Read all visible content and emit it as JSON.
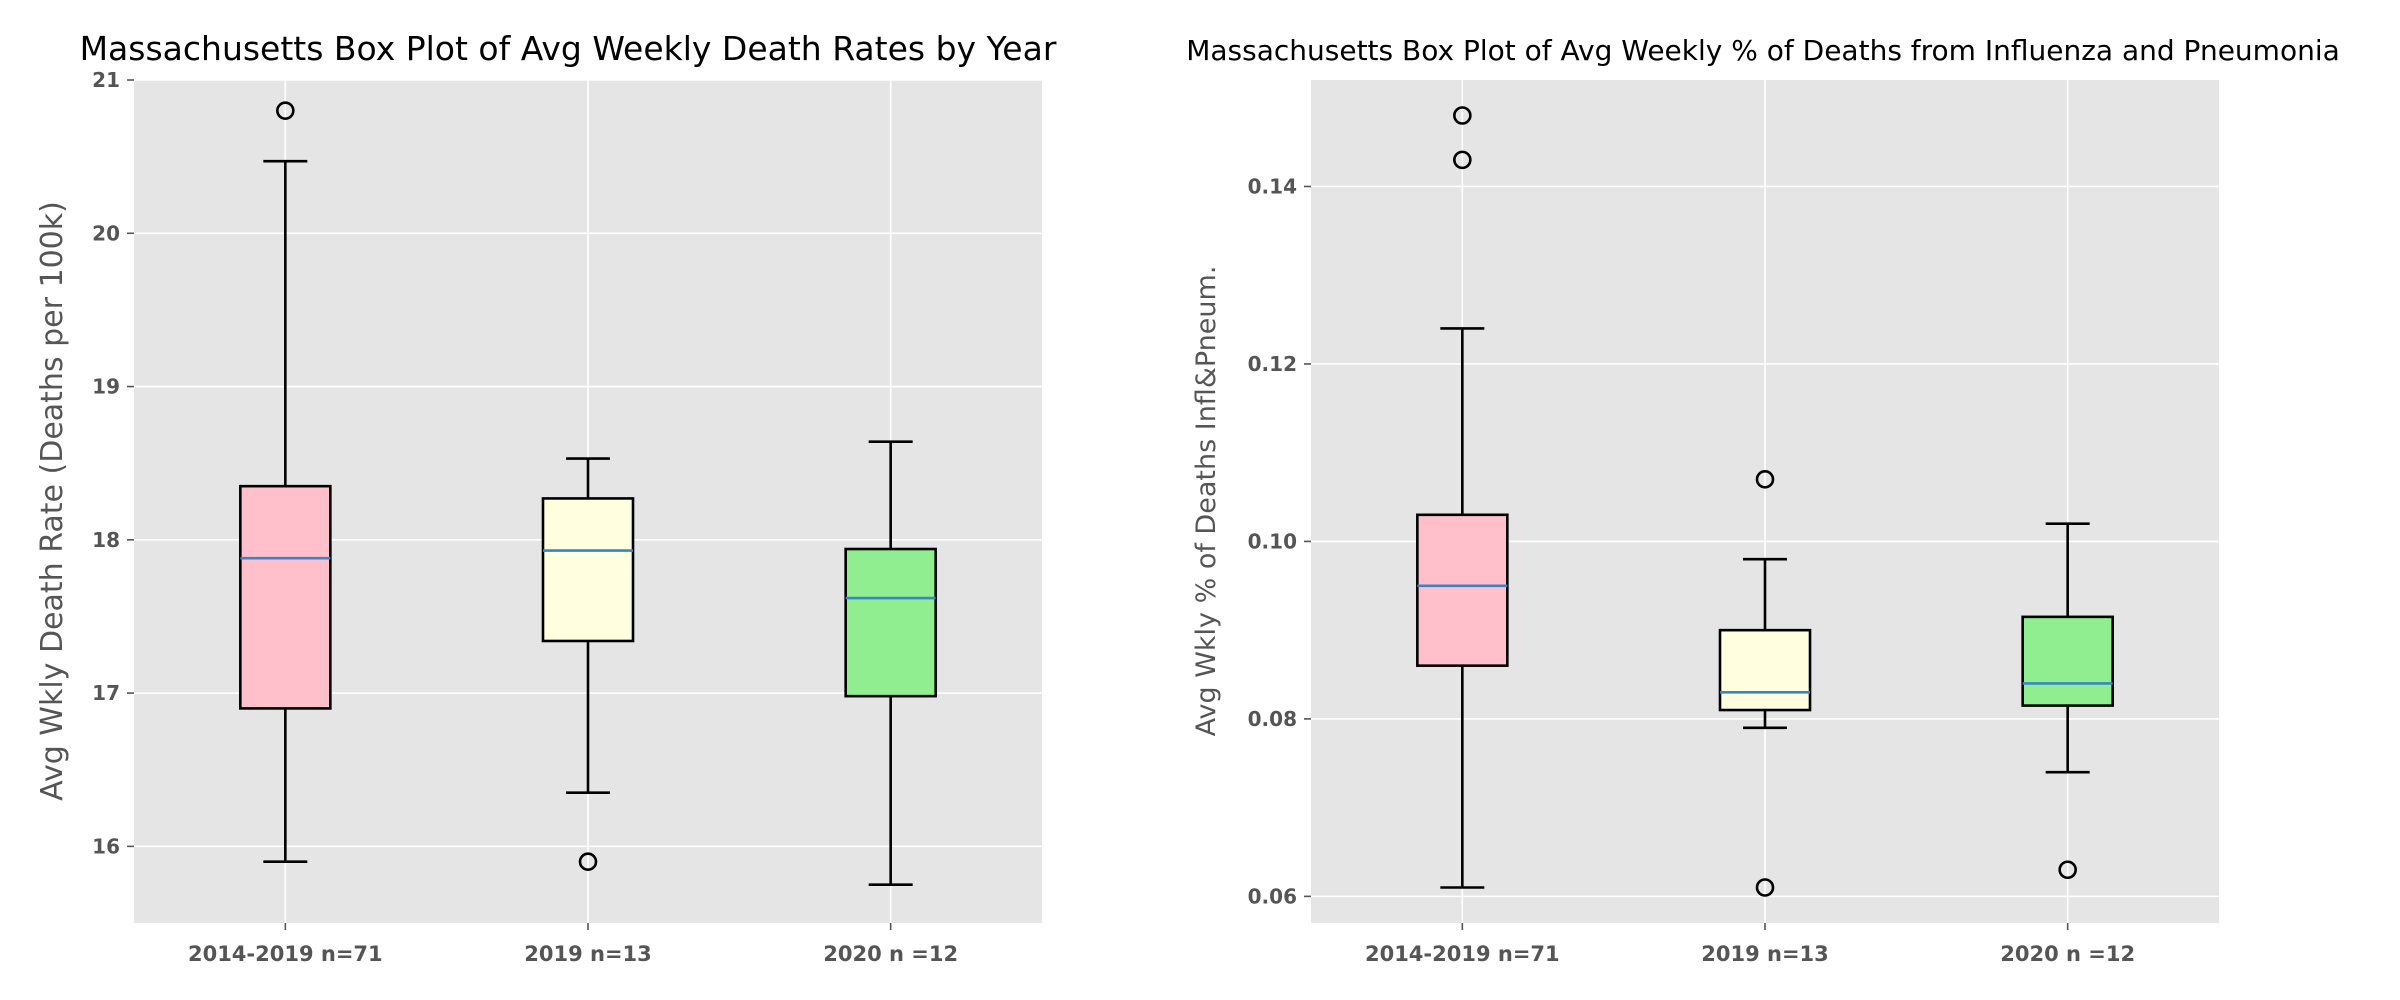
{
  "styles": {
    "plot_background": "#e5e5e5",
    "grid_color": "#ffffff",
    "median_color": "#3a84c4",
    "box_colors": [
      "#ffc0cb",
      "#ffffe0",
      "#90ee90"
    ]
  },
  "chart_data": [
    {
      "type": "box",
      "title": "Massachusetts Box Plot of Avg Weekly Death Rates by Year",
      "xlabel": "",
      "ylabel": "Avg Wkly Death Rate (Deaths per 100k)",
      "ylim": [
        15.5,
        21.0
      ],
      "yticks": [
        16,
        17,
        18,
        19,
        20,
        21
      ],
      "ytick_labels": [
        "16",
        "17",
        "18",
        "19",
        "20",
        "21"
      ],
      "grid": true,
      "categories": [
        "2014-2019 n=71",
        "2019 n=13",
        "2020 n =12"
      ],
      "boxes": [
        {
          "whisker_low": 15.9,
          "q1": 16.9,
          "median": 17.88,
          "q3": 18.35,
          "whisker_high": 20.47,
          "fliers": [
            20.8
          ],
          "color": "#ffc0cb"
        },
        {
          "whisker_low": 16.35,
          "q1": 17.34,
          "median": 17.93,
          "q3": 18.27,
          "whisker_high": 18.53,
          "fliers": [
            15.9
          ],
          "color": "#ffffe0"
        },
        {
          "whisker_low": 15.75,
          "q1": 16.98,
          "median": 17.62,
          "q3": 17.94,
          "whisker_high": 18.64,
          "fliers": [],
          "color": "#90ee90"
        }
      ]
    },
    {
      "type": "box",
      "title": "Massachusetts Box Plot of Avg Weekly % of Deaths from Influenza and Pneumonia",
      "xlabel": "",
      "ylabel": "Avg Wkly % of Deaths Infl&Pneum.",
      "ylim": [
        0.057,
        0.152
      ],
      "yticks": [
        0.06,
        0.08,
        0.1,
        0.12,
        0.14
      ],
      "ytick_labels": [
        "0.06",
        "0.08",
        "0.10",
        "0.12",
        "0.14"
      ],
      "grid": true,
      "categories": [
        "2014-2019 n=71",
        "2019 n=13",
        "2020 n =12"
      ],
      "boxes": [
        {
          "whisker_low": 0.061,
          "q1": 0.086,
          "median": 0.095,
          "q3": 0.103,
          "whisker_high": 0.124,
          "fliers": [
            0.143,
            0.148
          ],
          "color": "#ffc0cb"
        },
        {
          "whisker_low": 0.079,
          "q1": 0.081,
          "median": 0.083,
          "q3": 0.09,
          "whisker_high": 0.098,
          "fliers": [
            0.107,
            0.061
          ],
          "color": "#ffffe0"
        },
        {
          "whisker_low": 0.074,
          "q1": 0.0815,
          "median": 0.084,
          "q3": 0.0915,
          "whisker_high": 0.102,
          "fliers": [
            0.063
          ],
          "color": "#90ee90"
        }
      ]
    }
  ]
}
